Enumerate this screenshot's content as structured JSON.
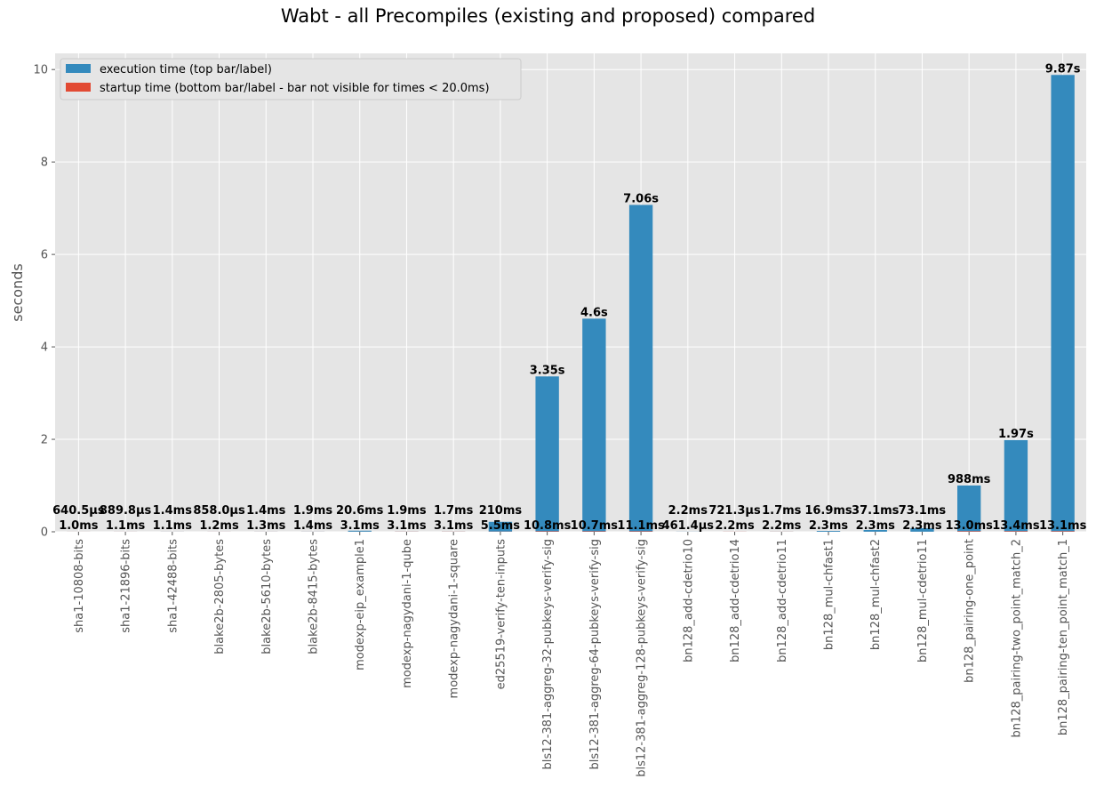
{
  "chart_data": {
    "type": "bar",
    "title": "Wabt - all Precompiles (existing and proposed) compared",
    "xlabel": "",
    "ylabel": "seconds",
    "ylim": [
      0,
      10.35
    ],
    "yticks": [
      0,
      2,
      4,
      6,
      8,
      10
    ],
    "grid": true,
    "legend_position": "top-left",
    "colors": {
      "execution": "#348ABD",
      "startup": "#E24A33",
      "background": "#E5E5E5",
      "grid": "#FFFFFF"
    },
    "categories": [
      "sha1-10808-bits",
      "sha1-21896-bits",
      "sha1-42488-bits",
      "blake2b-2805-bytes",
      "blake2b-5610-bytes",
      "blake2b-8415-bytes",
      "modexp-eip_example1",
      "modexp-nagydani-1-qube",
      "modexp-nagydani-1-square",
      "ed25519-verify-ten-inputs",
      "bls12-381-aggreg-32-pubkeys-verify-sig",
      "bls12-381-aggreg-64-pubkeys-verify-sig",
      "bls12-381-aggreg-128-pubkeys-verify-sig",
      "bn128_add-cdetrio10",
      "bn128_add-cdetrio14",
      "bn128_add-cdetrio11",
      "bn128_mul-chfast1",
      "bn128_mul-chfast2",
      "bn128_mul-cdetrio11",
      "bn128_pairing-one_point",
      "bn128_pairing-two_point_match_2",
      "bn128_pairing-ten_point_match_1"
    ],
    "series": [
      {
        "name": "execution time (top bar/label)",
        "values": [
          0.0006405,
          0.0008898,
          0.0014,
          0.000858,
          0.0014,
          0.0019,
          0.0206,
          0.0019,
          0.0017,
          0.21,
          3.35,
          4.6,
          7.06,
          0.0022,
          0.0007213,
          0.0017,
          0.0169,
          0.0371,
          0.0731,
          0.988,
          1.97,
          9.87
        ],
        "labels": [
          "640.5µs",
          "889.8µs",
          "1.4ms",
          "858.0µs",
          "1.4ms",
          "1.9ms",
          "20.6ms",
          "1.9ms",
          "1.7ms",
          "210ms",
          "3.35s",
          "4.6s",
          "7.06s",
          "2.2ms",
          "721.3µs",
          "1.7ms",
          "16.9ms",
          "37.1ms",
          "73.1ms",
          "988ms",
          "1.97s",
          "9.87s"
        ]
      },
      {
        "name": "startup time (bottom bar/label - bar not visible for times < 20.0ms)",
        "values": [
          0.001,
          0.0011,
          0.0011,
          0.0012,
          0.0013,
          0.0014,
          0.0031,
          0.0031,
          0.0031,
          0.0055,
          0.0108,
          0.0107,
          0.0111,
          0.0004614,
          0.0022,
          0.0022,
          0.0023,
          0.0023,
          0.0023,
          0.013,
          0.0134,
          0.0131
        ],
        "labels": [
          "1.0ms",
          "1.1ms",
          "1.1ms",
          "1.2ms",
          "1.3ms",
          "1.4ms",
          "3.1ms",
          "3.1ms",
          "3.1ms",
          "5.5ms",
          "10.8ms",
          "10.7ms",
          "11.1ms",
          "461.4µs",
          "2.2ms",
          "2.2ms",
          "2.3ms",
          "2.3ms",
          "2.3ms",
          "13.0ms",
          "13.4ms",
          "13.1ms"
        ]
      }
    ]
  }
}
